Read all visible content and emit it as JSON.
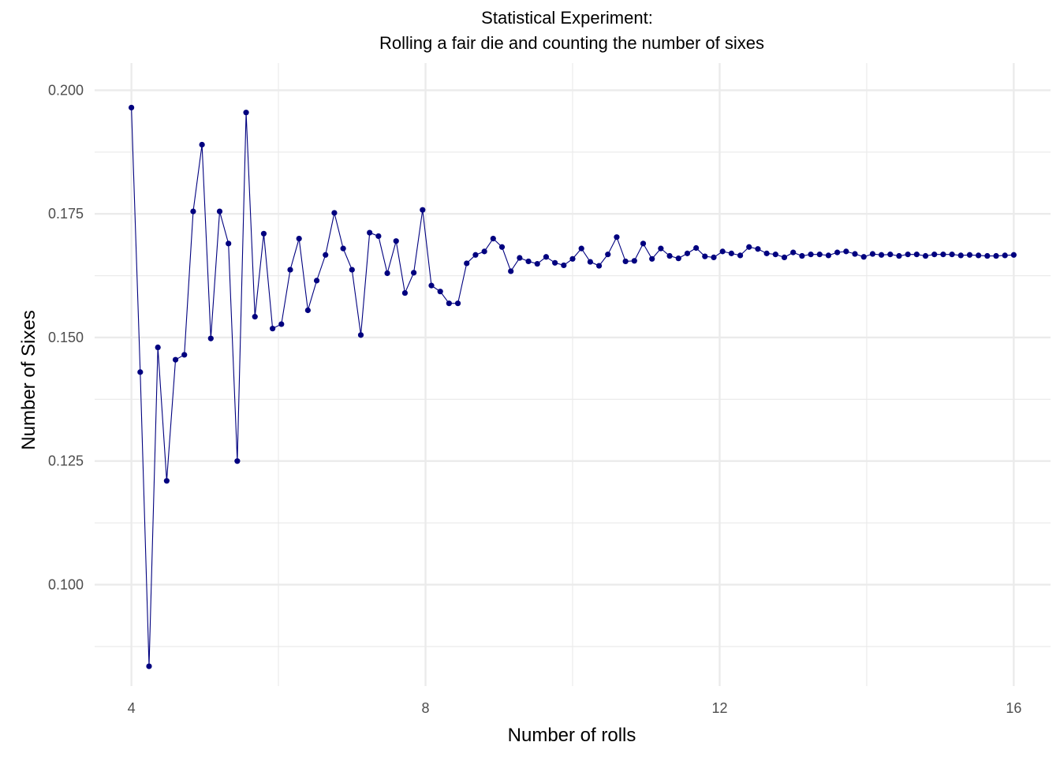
{
  "chart_data": {
    "type": "line",
    "title": "Statistical Experiment:",
    "subtitle": "Rolling a fair die and counting the number of sixes",
    "xlabel": "Number of rolls",
    "ylabel": "Number of Sixes",
    "xlim": [
      3.5,
      16.5
    ],
    "ylim": [
      0.0795,
      0.2055
    ],
    "x_major_ticks": [
      4,
      8,
      12,
      16
    ],
    "x_minor_ticks": [
      6,
      10,
      14
    ],
    "y_major_ticks": [
      0.1,
      0.125,
      0.15,
      0.175,
      0.2
    ],
    "y_minor_ticks": [
      0.0875,
      0.1125,
      0.1375,
      0.1625,
      0.1875
    ],
    "x_tick_labels": [
      "4",
      "8",
      "12",
      "16"
    ],
    "y_tick_labels": [
      "0.100",
      "0.125",
      "0.150",
      "0.175",
      "0.200"
    ],
    "grid": true,
    "legend": "none",
    "colors": {
      "series": "#00007f",
      "grid": "#ebebeb",
      "background": "#ffffff"
    },
    "series": [
      {
        "x_start": 4.0,
        "x_step": 0.12,
        "values": [
          0.1965,
          0.143,
          0.0835,
          0.148,
          0.121,
          0.1455,
          0.1465,
          0.1755,
          0.189,
          0.1498,
          0.1755,
          0.169,
          0.125,
          0.1955,
          0.1542,
          0.171,
          0.1518,
          0.1527,
          0.1637,
          0.17,
          0.1555,
          0.1615,
          0.1667,
          0.1752,
          0.168,
          0.1637,
          0.1505,
          0.1712,
          0.1705,
          0.163,
          0.1695,
          0.159,
          0.1631,
          0.1758,
          0.1605,
          0.1593,
          0.1569,
          0.1569,
          0.165,
          0.1667,
          0.1674,
          0.17,
          0.1683,
          0.1634,
          0.1661,
          0.1654,
          0.1649,
          0.1663,
          0.1651,
          0.1646,
          0.1659,
          0.168,
          0.1653,
          0.1645,
          0.1668,
          0.1703,
          0.1654,
          0.1655,
          0.169,
          0.1659,
          0.168,
          0.1665,
          0.166,
          0.167,
          0.1681,
          0.1664,
          0.1662,
          0.1674,
          0.167,
          0.1666,
          0.1683,
          0.1679,
          0.167,
          0.1668,
          0.1662,
          0.1672,
          0.1665,
          0.1668,
          0.1668,
          0.1666,
          0.1672,
          0.1674,
          0.1669,
          0.1663,
          0.1669,
          0.1667,
          0.1668,
          0.1665,
          0.1668,
          0.1668,
          0.1665,
          0.1668,
          0.1668,
          0.1668,
          0.1666,
          0.1667,
          0.1666,
          0.1665,
          0.1665,
          0.1666,
          0.1667
        ]
      }
    ]
  }
}
